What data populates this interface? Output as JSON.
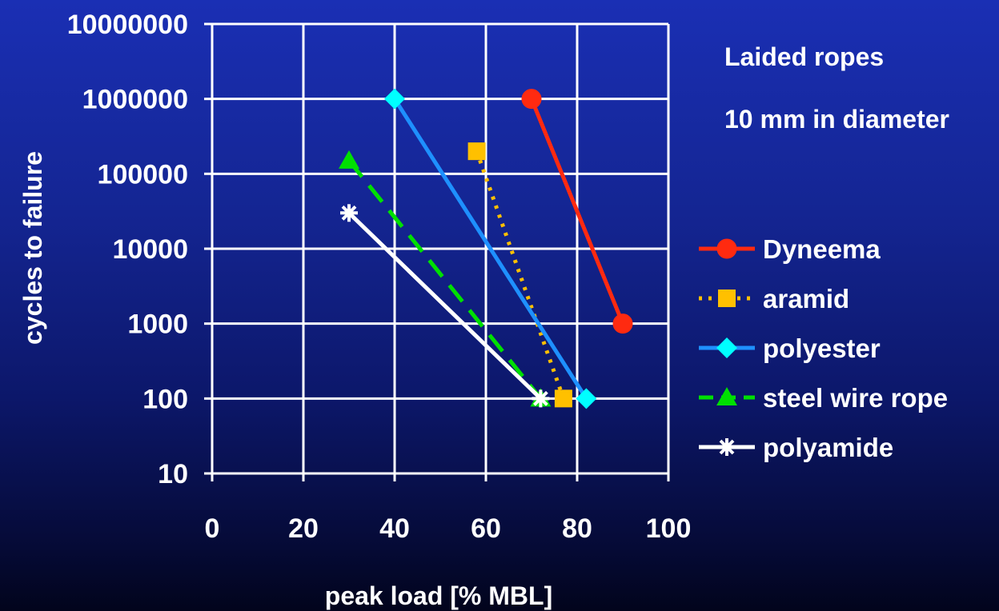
{
  "chart_data": {
    "type": "line",
    "notes": [
      "Laided ropes",
      "10 mm in diameter"
    ],
    "xlabel": "peak load [% MBL]",
    "ylabel": "cycles to failure",
    "x_ticks": [
      "0",
      "20",
      "40",
      "60",
      "80",
      "100"
    ],
    "y_ticks": [
      "10",
      "100",
      "1000",
      "10000",
      "100000",
      "1000000",
      "10000000"
    ],
    "xlim": [
      0,
      100
    ],
    "ylim": [
      10,
      10000000
    ],
    "y_scale": "log",
    "grid": true,
    "legend_position": "right",
    "series": [
      {
        "name": "Dyneema",
        "color": "#ff2a10",
        "marker": "circle",
        "dash": "solid",
        "points": [
          [
            70,
            1000000
          ],
          [
            90,
            1000
          ]
        ]
      },
      {
        "name": "aramid",
        "color": "#ffc000",
        "marker": "square",
        "dash": "dotted",
        "points": [
          [
            58,
            200000
          ],
          [
            77,
            100
          ]
        ]
      },
      {
        "name": "polyester",
        "color": "#1e90ff",
        "marker_color": "#00ffff",
        "marker": "diamond",
        "dash": "solid",
        "points": [
          [
            40,
            1000000
          ],
          [
            82,
            100
          ]
        ]
      },
      {
        "name": "steel wire rope",
        "color": "#00e000",
        "marker": "triangle",
        "dash": "dashed",
        "points": [
          [
            30,
            150000
          ],
          [
            72,
            100
          ]
        ]
      },
      {
        "name": "polyamide",
        "color": "#ffffff",
        "marker": "asterisk",
        "dash": "solid",
        "points": [
          [
            30,
            30000
          ],
          [
            72,
            100
          ]
        ]
      }
    ]
  }
}
